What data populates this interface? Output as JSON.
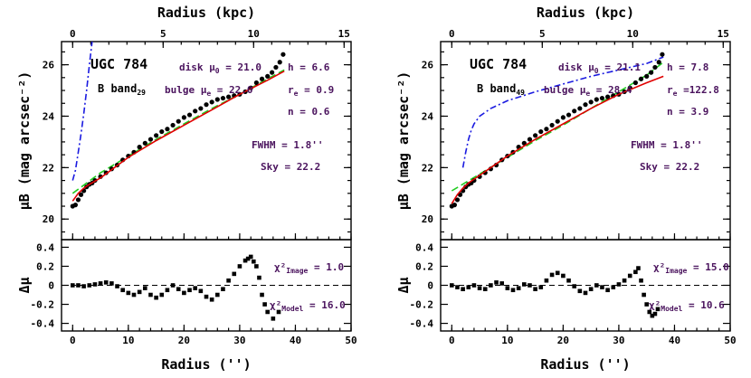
{
  "colors": {
    "axis": "#000000",
    "annotation": "#4b145e",
    "total_fit": "#e00000",
    "disk_fit": "#22cc22",
    "bulge_fit": "#1a1ae0",
    "data": "#000000"
  },
  "chart_data": [
    {
      "type": "scatter",
      "galaxy": "UGC 784",
      "band": "B band",
      "band_subscript": "29",
      "title_top": "Radius (kpc)",
      "xlabel": "Radius ('')",
      "ylabel_upper": "μB (mag arcsec⁻²)",
      "ylabel_lower": "Δμ",
      "xlim": [
        -2,
        50
      ],
      "ylim_upper": [
        26.9,
        19.2
      ],
      "ylim_lower": [
        -0.48,
        0.48
      ],
      "x_ticks": [
        "0",
        "10",
        "20",
        "30",
        "40",
        "50"
      ],
      "x_ticks_kpc": [
        "0",
        "5",
        "10",
        "15"
      ],
      "kpc_per_arcsec": 0.3077,
      "y_ticks_upper": [
        "20",
        "22",
        "24",
        "26"
      ],
      "y_ticks_lower": [
        "0.4",
        "0.2",
        "0",
        "-0.2",
        "-0.4"
      ],
      "annotations": {
        "disk": "disk μ0 = 21.0",
        "h": "h =  6.6",
        "bulge": "bulge μe = 22.0",
        "re": "re =  0.9",
        "n": "n =  0.6",
        "fwhm": "FWHM = 1.8''",
        "sky": "Sky = 22.2",
        "chi_image": "χ²Image = 1.0",
        "chi_model": "χ²Model = 16.0"
      },
      "series": [
        {
          "name": "data",
          "x": [
            0,
            0.5,
            1,
            1.5,
            2,
            2.5,
            3,
            3.5,
            4,
            5,
            6,
            7,
            8,
            9,
            10,
            11,
            12,
            13,
            14,
            15,
            16,
            17,
            18,
            19,
            20,
            21,
            22,
            23,
            24,
            25,
            26,
            27,
            28,
            29,
            30,
            31,
            32,
            33,
            34,
            35,
            35.8,
            36.5,
            37.2,
            37.8
          ],
          "y": [
            20.5,
            20.55,
            20.75,
            20.95,
            21.1,
            21.25,
            21.35,
            21.4,
            21.5,
            21.65,
            21.8,
            21.95,
            22.1,
            22.3,
            22.45,
            22.6,
            22.8,
            22.95,
            23.1,
            23.25,
            23.4,
            23.5,
            23.65,
            23.8,
            23.95,
            24.05,
            24.2,
            24.3,
            24.45,
            24.55,
            24.65,
            24.7,
            24.75,
            24.8,
            24.85,
            24.95,
            25.1,
            25.3,
            25.45,
            25.55,
            25.7,
            25.9,
            26.1,
            26.4
          ]
        },
        {
          "name": "total fit",
          "x": [
            0,
            1,
            2,
            3,
            5,
            10,
            15,
            20,
            25,
            30,
            35,
            38
          ],
          "y": [
            20.7,
            21.0,
            21.2,
            21.35,
            21.6,
            22.4,
            23.05,
            23.65,
            24.25,
            24.85,
            25.4,
            25.75
          ]
        },
        {
          "name": "disk",
          "x": [
            0,
            5,
            10,
            15,
            20,
            25,
            30,
            35,
            38
          ],
          "y": [
            21.0,
            21.8,
            22.45,
            23.1,
            23.7,
            24.3,
            24.85,
            25.45,
            25.8
          ]
        },
        {
          "name": "bulge",
          "x": [
            0,
            0.5,
            1,
            1.5,
            2,
            2.5,
            3,
            3.5
          ],
          "y": [
            21.5,
            21.9,
            22.6,
            23.3,
            24.1,
            25.0,
            26.0,
            26.9
          ]
        },
        {
          "name": "residual",
          "x": [
            0,
            1,
            2,
            3,
            4,
            5,
            6,
            7,
            8,
            9,
            10,
            11,
            12,
            13,
            14,
            15,
            16,
            17,
            18,
            19,
            20,
            21,
            22,
            23,
            24,
            25,
            26,
            27,
            28,
            29,
            30,
            31,
            31.5,
            32,
            32.5,
            33,
            33.5,
            34,
            34.5,
            35,
            36,
            37
          ],
          "y": [
            0,
            0,
            -0.01,
            0,
            0.01,
            0.02,
            0.03,
            0.02,
            -0.01,
            -0.05,
            -0.08,
            -0.1,
            -0.07,
            -0.03,
            -0.1,
            -0.13,
            -0.1,
            -0.05,
            0,
            -0.04,
            -0.08,
            -0.05,
            -0.03,
            -0.06,
            -0.12,
            -0.15,
            -0.1,
            -0.04,
            0.05,
            0.12,
            0.2,
            0.26,
            0.28,
            0.3,
            0.25,
            0.2,
            0.08,
            -0.1,
            -0.2,
            -0.28,
            -0.35,
            -0.28
          ]
        }
      ]
    },
    {
      "type": "scatter",
      "galaxy": "UGC 784",
      "band": "B band",
      "band_subscript": "49",
      "title_top": "Radius (kpc)",
      "xlabel": "Radius ('')",
      "ylabel_upper": "μB (mag arcsec⁻²)",
      "ylabel_lower": "Δμ",
      "xlim": [
        -2,
        50
      ],
      "ylim_upper": [
        26.9,
        19.2
      ],
      "ylim_lower": [
        -0.48,
        0.48
      ],
      "x_ticks": [
        "0",
        "10",
        "20",
        "30",
        "40",
        "50"
      ],
      "x_ticks_kpc": [
        "0",
        "5",
        "10",
        "15"
      ],
      "kpc_per_arcsec": 0.3077,
      "y_ticks_upper": [
        "20",
        "22",
        "24",
        "26"
      ],
      "y_ticks_lower": [
        "0.4",
        "0.2",
        "0",
        "-0.2",
        "-0.4"
      ],
      "annotations": {
        "disk": "disk μ0 = 21.1",
        "h": "h =  7.8",
        "bulge": "bulge μe = 28.4",
        "re": "re =122.8",
        "n": "n =  3.9",
        "fwhm": "FWHM = 1.8''",
        "sky": "Sky = 22.2",
        "chi_image": "χ²Image = 15.0",
        "chi_model": "χ²Model = 10.6"
      },
      "series": [
        {
          "name": "data",
          "x": [
            0,
            0.5,
            1,
            1.5,
            2,
            2.5,
            3,
            3.5,
            4,
            5,
            6,
            7,
            8,
            9,
            10,
            11,
            12,
            13,
            14,
            15,
            16,
            17,
            18,
            19,
            20,
            21,
            22,
            23,
            24,
            25,
            26,
            27,
            28,
            29,
            30,
            31,
            32,
            33,
            34,
            35,
            35.8,
            36.5,
            37.2,
            37.8
          ],
          "y": [
            20.5,
            20.55,
            20.75,
            20.95,
            21.1,
            21.25,
            21.35,
            21.4,
            21.5,
            21.65,
            21.8,
            21.95,
            22.1,
            22.3,
            22.45,
            22.6,
            22.8,
            22.95,
            23.1,
            23.25,
            23.4,
            23.5,
            23.65,
            23.8,
            23.95,
            24.05,
            24.2,
            24.3,
            24.45,
            24.55,
            24.65,
            24.7,
            24.75,
            24.8,
            24.85,
            24.95,
            25.1,
            25.3,
            25.45,
            25.55,
            25.7,
            25.9,
            26.1,
            26.4
          ]
        },
        {
          "name": "total fit",
          "x": [
            0,
            1,
            2,
            3,
            5,
            10,
            15,
            20,
            25,
            30,
            35,
            38
          ],
          "y": [
            20.6,
            20.95,
            21.2,
            21.4,
            21.7,
            22.45,
            23.1,
            23.7,
            24.3,
            24.85,
            25.3,
            25.55
          ]
        },
        {
          "name": "disk",
          "x": [
            0,
            5,
            10,
            15,
            20,
            25,
            30,
            35,
            38
          ],
          "y": [
            21.1,
            21.75,
            22.4,
            23.05,
            23.65,
            24.3,
            24.95,
            25.6,
            26.1
          ]
        },
        {
          "name": "bulge",
          "x": [
            2,
            2.5,
            3,
            3.5,
            4,
            5,
            7,
            10,
            15,
            20,
            25,
            30,
            35,
            38
          ],
          "y": [
            22.0,
            22.6,
            23.1,
            23.45,
            23.7,
            24.0,
            24.3,
            24.6,
            24.95,
            25.25,
            25.55,
            25.8,
            26.05,
            26.3
          ]
        },
        {
          "name": "residual",
          "x": [
            0,
            1,
            2,
            3,
            4,
            5,
            6,
            7,
            8,
            9,
            10,
            11,
            12,
            13,
            14,
            15,
            16,
            17,
            18,
            19,
            20,
            21,
            22,
            23,
            24,
            25,
            26,
            27,
            28,
            29,
            30,
            31,
            32,
            33,
            33.5,
            34,
            34.5,
            35,
            35.5,
            36,
            36.5,
            37
          ],
          "y": [
            0,
            -0.02,
            -0.04,
            -0.02,
            0,
            -0.03,
            -0.04,
            0,
            0.03,
            0.02,
            -0.03,
            -0.05,
            -0.03,
            0.01,
            0,
            -0.04,
            -0.02,
            0.05,
            0.11,
            0.13,
            0.1,
            0.05,
            -0.01,
            -0.06,
            -0.08,
            -0.04,
            0,
            -0.02,
            -0.05,
            -0.02,
            0.01,
            0.05,
            0.1,
            0.14,
            0.18,
            0.05,
            -0.1,
            -0.2,
            -0.28,
            -0.32,
            -0.3,
            -0.25
          ]
        }
      ]
    }
  ]
}
